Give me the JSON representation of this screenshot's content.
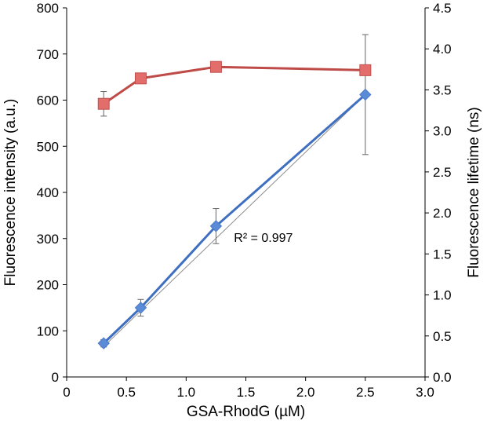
{
  "chart_data": {
    "type": "line",
    "x_axis": {
      "label": "GSA-RhodG (µM)",
      "min": 0,
      "max": 3,
      "ticks": [
        "0",
        "0.5",
        "1.0",
        "1.5",
        "2.0",
        "2.5",
        "3.0"
      ]
    },
    "y_left_axis": {
      "label": "Fluorescence intensity (a.u.)",
      "min": 0,
      "max": 800,
      "ticks": [
        "0",
        "100",
        "200",
        "300",
        "400",
        "500",
        "600",
        "700",
        "800"
      ]
    },
    "y_right_axis": {
      "label": "Fluorescence lifetime (ns)",
      "min": 0,
      "max": 4.5,
      "ticks": [
        "0.0",
        "0.5",
        "1.0",
        "1.5",
        "2.0",
        "2.5",
        "3.0",
        "3.5",
        "4.0",
        "4.5"
      ]
    },
    "grid": false,
    "series": [
      {
        "axis": "left",
        "marker": "diamond",
        "color": "#5b8ad6",
        "line_color": "#3f6fc1",
        "x": [
          0.31,
          0.62,
          1.25,
          2.5
        ],
        "y": [
          73,
          150,
          327,
          612
        ],
        "error": [
          8,
          18,
          38,
          130
        ]
      },
      {
        "axis": "right",
        "marker": "square",
        "color": "#e36d6b",
        "line_color": "#be4b48",
        "x": [
          0.31,
          0.62,
          1.25,
          2.5
        ],
        "y": [
          3.33,
          3.64,
          3.78,
          3.74
        ],
        "error": [
          0.15,
          0.04,
          0.04,
          0.04
        ]
      }
    ],
    "trendline": {
      "axis": "left",
      "color": "#8c8c8c",
      "x": [
        0.31,
        2.5
      ],
      "y": [
        66,
        612
      ]
    },
    "annotation": {
      "text": "R² = 0.997",
      "x": 1.4,
      "y": 293
    }
  }
}
